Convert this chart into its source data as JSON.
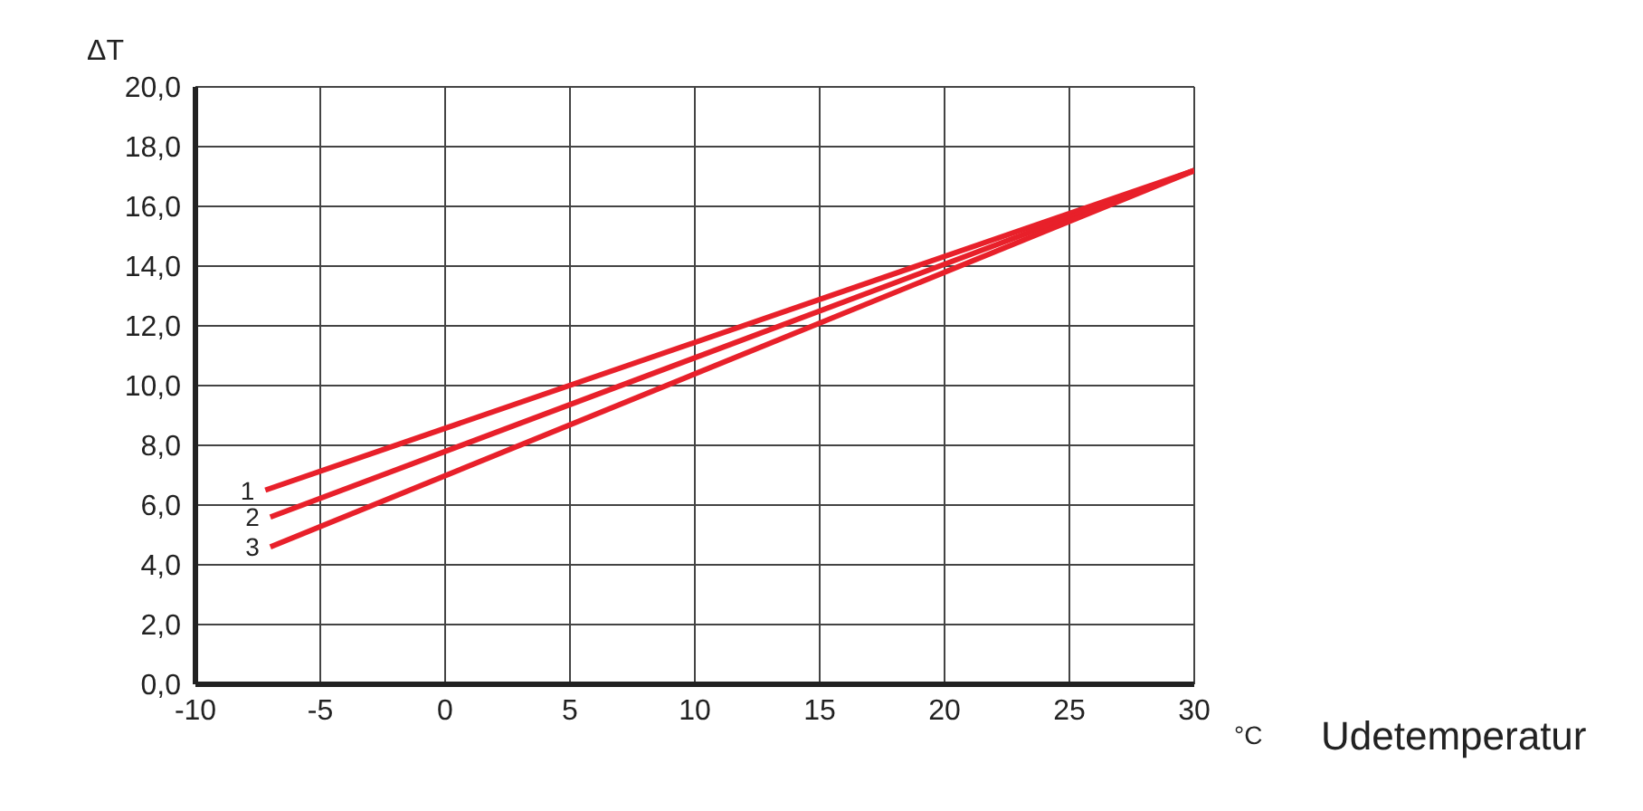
{
  "chart_data": {
    "type": "line",
    "xlabel": "°C",
    "ylabel": "ΔT",
    "annotations": [
      "Udetemperatur"
    ],
    "series": [
      {
        "name": "1",
        "color": "#e8202a",
        "x": [
          -7.2,
          30
        ],
        "values": [
          6.5,
          17.2
        ]
      },
      {
        "name": "2",
        "color": "#e8202a",
        "x": [
          -7.0,
          30
        ],
        "values": [
          5.6,
          17.2
        ]
      },
      {
        "name": "3",
        "color": "#e8202a",
        "x": [
          -7.0,
          30
        ],
        "values": [
          4.6,
          17.2
        ]
      }
    ],
    "xlim": [
      -10,
      30
    ],
    "xticks": [
      -10,
      -5,
      0,
      5,
      10,
      15,
      20,
      25,
      30
    ],
    "ylim": [
      0,
      20
    ],
    "yticks": [
      {
        "value": 0,
        "label": "0,0"
      },
      {
        "value": 2,
        "label": "2,0"
      },
      {
        "value": 4,
        "label": "4,0"
      },
      {
        "value": 6,
        "label": "6,0"
      },
      {
        "value": 8,
        "label": "8,0"
      },
      {
        "value": 10,
        "label": "10,0"
      },
      {
        "value": 12,
        "label": "12,0"
      },
      {
        "value": 14,
        "label": "14,0"
      },
      {
        "value": 16,
        "label": "16,0"
      },
      {
        "value": 18,
        "label": "18,0"
      },
      {
        "value": 20,
        "label": "20,0"
      }
    ],
    "grid": true,
    "legend": false,
    "marker": "none",
    "line_style": "solid"
  }
}
